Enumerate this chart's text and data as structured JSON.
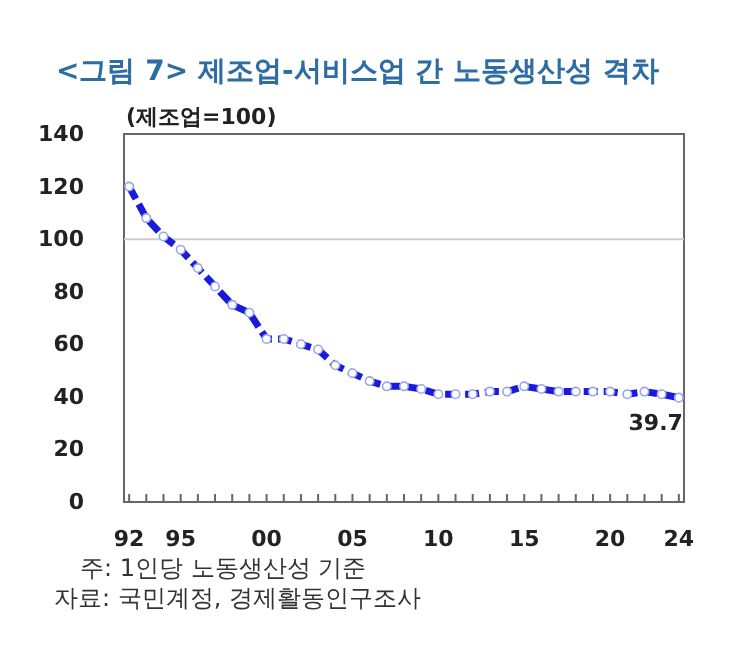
{
  "chart_data": {
    "type": "line",
    "title": "<그림 7> 제조업-서비스업 간 노동생산성 격차",
    "ylabel": "(제조업=100)",
    "annotations": [
      {
        "text": "39.7",
        "x": 2024,
        "y": 39.7
      },
      "주: 1인당 노동생산성 기준",
      "자료: 국민계정, 경제활동인구조사"
    ],
    "x": [
      1992,
      1993,
      1994,
      1995,
      1996,
      1997,
      1998,
      1999,
      2000,
      2001,
      2002,
      2003,
      2004,
      2005,
      2006,
      2007,
      2008,
      2009,
      2010,
      2011,
      2012,
      2013,
      2014,
      2015,
      2016,
      2017,
      2018,
      2019,
      2020,
      2021,
      2022,
      2023,
      2024
    ],
    "series": [
      {
        "color": "#1a1adb",
        "values": [
          120,
          108,
          101,
          96,
          89,
          82,
          75,
          72,
          62,
          62,
          60,
          58,
          52,
          49,
          46,
          44,
          44,
          43,
          41,
          41,
          41,
          42,
          42,
          44,
          43,
          42,
          42,
          42,
          42,
          41,
          42,
          41,
          39.7
        ]
      }
    ],
    "xlim": [
      1991.7,
      2024.3
    ],
    "ylim": [
      0,
      140
    ],
    "xticks": [
      {
        "value": 1992,
        "label": "92"
      },
      {
        "value": 1993,
        "label": null
      },
      {
        "value": 1994,
        "label": null
      },
      {
        "value": 1995,
        "label": "95"
      },
      {
        "value": 1996,
        "label": null
      },
      {
        "value": 1997,
        "label": null
      },
      {
        "value": 1998,
        "label": null
      },
      {
        "value": 1999,
        "label": null
      },
      {
        "value": 2000,
        "label": "00"
      },
      {
        "value": 2001,
        "label": null
      },
      {
        "value": 2002,
        "label": null
      },
      {
        "value": 2003,
        "label": null
      },
      {
        "value": 2004,
        "label": null
      },
      {
        "value": 2005,
        "label": "05"
      },
      {
        "value": 2006,
        "label": null
      },
      {
        "value": 2007,
        "label": null
      },
      {
        "value": 2008,
        "label": null
      },
      {
        "value": 2009,
        "label": null
      },
      {
        "value": 2010,
        "label": "10"
      },
      {
        "value": 2011,
        "label": null
      },
      {
        "value": 2012,
        "label": null
      },
      {
        "value": 2013,
        "label": null
      },
      {
        "value": 2014,
        "label": null
      },
      {
        "value": 2015,
        "label": "15"
      },
      {
        "value": 2016,
        "label": null
      },
      {
        "value": 2017,
        "label": null
      },
      {
        "value": 2018,
        "label": null
      },
      {
        "value": 2019,
        "label": null
      },
      {
        "value": 2020,
        "label": "20"
      },
      {
        "value": 2021,
        "label": null
      },
      {
        "value": 2022,
        "label": null
      },
      {
        "value": 2023,
        "label": null
      },
      {
        "value": 2024,
        "label": "24"
      }
    ],
    "yticks": [
      0,
      20,
      40,
      60,
      80,
      100,
      120,
      140
    ],
    "ref_lines": [
      {
        "axis": "y",
        "value": 100,
        "color": "#cccccc"
      }
    ],
    "marker": "circle",
    "line_style": "dashed",
    "grid": false
  }
}
